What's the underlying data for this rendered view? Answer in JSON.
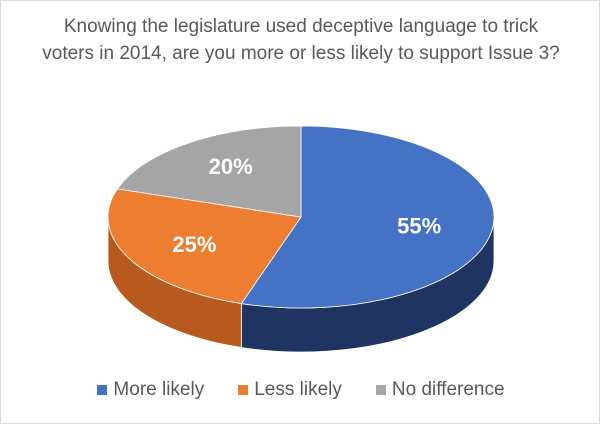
{
  "chart_data": {
    "type": "pie",
    "style": "3d",
    "title": "Knowing the legislature used deceptive language to trick voters in 2014, are you more or less likely to support Issue 3?",
    "categories": [
      "More likely",
      "Less likely",
      "No difference"
    ],
    "values": [
      55,
      25,
      20
    ],
    "data_labels": [
      "55%",
      "25%",
      "20%"
    ],
    "colors": [
      "#4472C4",
      "#ED7D31",
      "#A5A5A5"
    ],
    "side_colors": [
      "#1F3461",
      "#B85A1E",
      "#7F7F7F"
    ],
    "legend_position": "bottom"
  }
}
